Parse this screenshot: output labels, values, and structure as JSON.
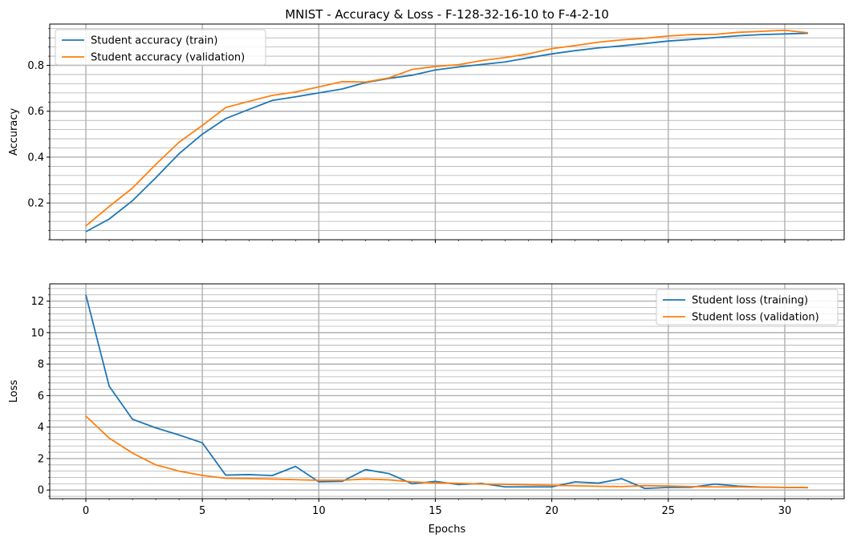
{
  "chart_data": [
    {
      "type": "line",
      "title": "MNIST - Accuracy & Loss - F-128-32-16-10 to F-4-2-10",
      "xlabel": "",
      "ylabel": "Accuracy",
      "xlim": [
        -1.55,
        32.55
      ],
      "ylim": [
        0.04,
        0.98
      ],
      "xticks": [
        0,
        5,
        10,
        15,
        20,
        25,
        30
      ],
      "xtick_labels": [
        "",
        "",
        "",
        "",
        "",
        "",
        ""
      ],
      "yticks": [
        0.2,
        0.4,
        0.6,
        0.8
      ],
      "ytick_labels": [
        "0.2",
        "0.4",
        "0.6",
        "0.8"
      ],
      "grid": true,
      "minor_grid": true,
      "legend_position": "upper-left",
      "x": [
        0,
        1,
        2,
        3,
        4,
        5,
        6,
        7,
        8,
        9,
        10,
        11,
        12,
        13,
        14,
        15,
        16,
        17,
        18,
        19,
        20,
        21,
        22,
        23,
        24,
        25,
        26,
        27,
        28,
        29,
        30,
        31
      ],
      "series": [
        {
          "name": "Student accuracy (train)",
          "color": "#1f77b4",
          "values": [
            0.075,
            0.13,
            0.21,
            0.31,
            0.415,
            0.5,
            0.568,
            0.608,
            0.647,
            0.663,
            0.68,
            0.697,
            0.725,
            0.743,
            0.757,
            0.78,
            0.793,
            0.804,
            0.815,
            0.833,
            0.85,
            0.864,
            0.876,
            0.885,
            0.895,
            0.906,
            0.913,
            0.921,
            0.929,
            0.934,
            0.937,
            0.94
          ]
        },
        {
          "name": "Student accuracy (validation)",
          "color": "#ff7f0e",
          "values": [
            0.1,
            0.185,
            0.265,
            0.368,
            0.465,
            0.538,
            0.616,
            0.643,
            0.669,
            0.684,
            0.706,
            0.729,
            0.727,
            0.745,
            0.782,
            0.795,
            0.803,
            0.821,
            0.834,
            0.85,
            0.873,
            0.886,
            0.901,
            0.911,
            0.918,
            0.928,
            0.934,
            0.935,
            0.944,
            0.948,
            0.953,
            0.942
          ]
        }
      ]
    },
    {
      "type": "line",
      "title": "",
      "xlabel": "Epochs",
      "ylabel": "Loss",
      "xlim": [
        -1.55,
        32.55
      ],
      "ylim": [
        -0.55,
        13.1
      ],
      "xticks": [
        0,
        5,
        10,
        15,
        20,
        25,
        30
      ],
      "xtick_labels": [
        "0",
        "5",
        "10",
        "15",
        "20",
        "25",
        "30"
      ],
      "yticks": [
        0,
        2,
        4,
        6,
        8,
        10,
        12
      ],
      "ytick_labels": [
        "0",
        "2",
        "4",
        "6",
        "8",
        "10",
        "12"
      ],
      "grid": true,
      "minor_grid": true,
      "legend_position": "upper-right",
      "x": [
        0,
        1,
        2,
        3,
        4,
        5,
        6,
        7,
        8,
        9,
        10,
        11,
        12,
        13,
        14,
        15,
        16,
        17,
        18,
        19,
        20,
        21,
        22,
        23,
        24,
        25,
        26,
        27,
        28,
        29,
        30,
        31
      ],
      "series": [
        {
          "name": "Student loss (training)",
          "color": "#1f77b4",
          "values": [
            12.4,
            6.6,
            4.5,
            3.95,
            3.5,
            3.0,
            0.95,
            0.98,
            0.92,
            1.5,
            0.52,
            0.55,
            1.3,
            1.05,
            0.4,
            0.55,
            0.35,
            0.42,
            0.2,
            0.2,
            0.2,
            0.52,
            0.44,
            0.72,
            0.1,
            0.17,
            0.18,
            0.38,
            0.25,
            0.19,
            0.17,
            0.15
          ]
        },
        {
          "name": "Student loss (validation)",
          "color": "#ff7f0e",
          "values": [
            4.7,
            3.3,
            2.35,
            1.6,
            1.2,
            0.93,
            0.75,
            0.73,
            0.7,
            0.66,
            0.62,
            0.62,
            0.7,
            0.65,
            0.52,
            0.45,
            0.43,
            0.38,
            0.36,
            0.33,
            0.3,
            0.27,
            0.24,
            0.22,
            0.28,
            0.26,
            0.22,
            0.2,
            0.2,
            0.18,
            0.17,
            0.16
          ]
        }
      ]
    }
  ]
}
